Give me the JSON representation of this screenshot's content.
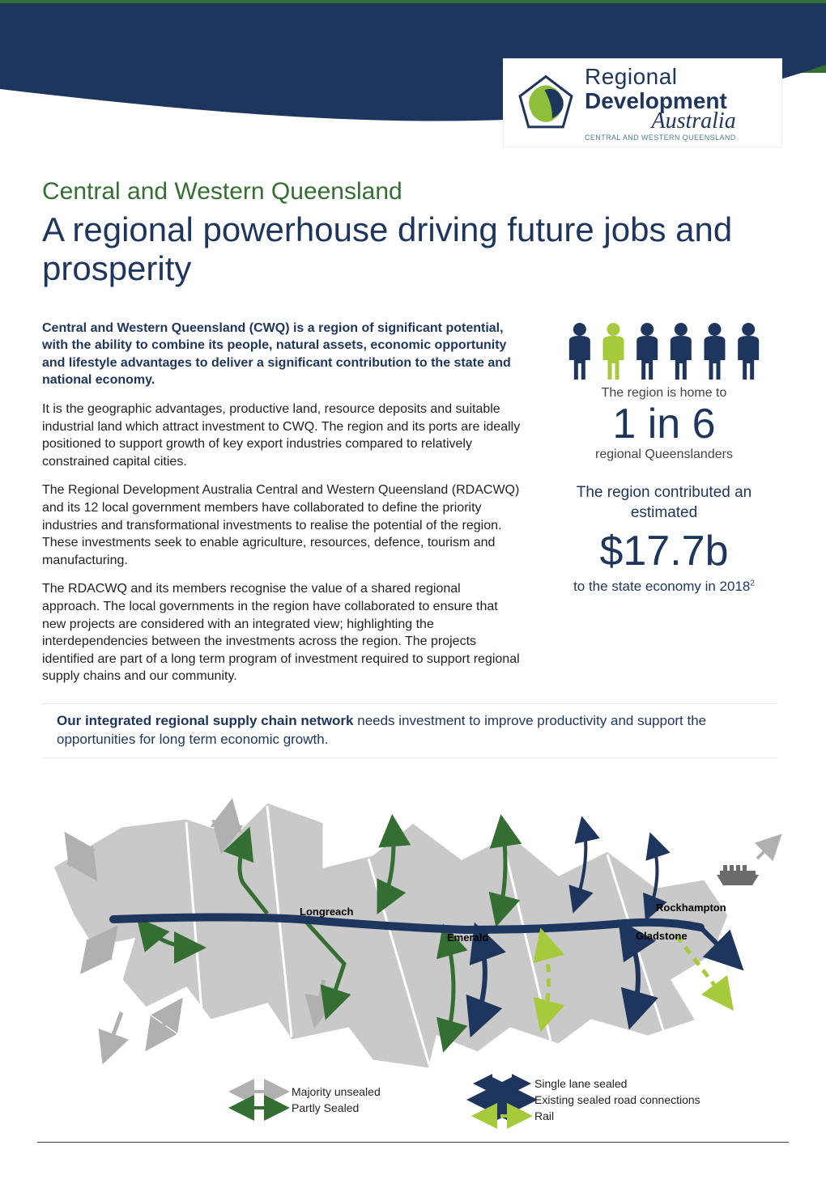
{
  "logo": {
    "line1": "Regional",
    "line2": "Development",
    "line3": "Australia",
    "subtext": "CENTRAL AND WESTERN QUEENSLAND",
    "mark_colors": [
      "#8fbf3a",
      "#1e355d",
      "#356e32"
    ]
  },
  "header": {
    "subtitle": "Central and Western Queensland",
    "title": "A regional powerhouse driving future jobs and prosperity",
    "subtitle_color": "#356e32",
    "title_color": "#1e355d"
  },
  "intro": {
    "bold": "Central and Western Queensland (CWQ) is a region of significant potential, with the ability to combine its people, natural assets, economic opportunity and lifestyle advantages to deliver a significant contribution to the state and national economy.",
    "p1": "It is the geographic advantages, productive land, resource deposits and suitable industrial land which attract investment to CWQ. The region and its ports are ideally positioned to support growth of key export industries compared to relatively constrained capital cities.",
    "p2": "The Regional Development Australia Central and Western Queensland (RDACWQ) and its 12 local government members have collaborated to define the priority industries and transformational investments to realise the potential of the region. These investments seek to enable agriculture, resources, defence, tourism and manufacturing.",
    "p3": "The RDACWQ and its members recognise the value of a shared regional approach. The local governments in the region have collaborated to ensure that new projects are considered with an integrated view; highlighting the interdependencies between the investments across the region. The projects identified are part of a long term program of investment required to support regional supply chains and our community."
  },
  "stats": {
    "people_total": 6,
    "people_highlight_index": 1,
    "people_color": "#1e355d",
    "people_highlight_color": "#a7c93c",
    "home_to_label": "The region is home to",
    "ratio": "1 in 6",
    "ratio_sub": "regional Queenslanders",
    "contrib_label_a": "The region contributed an",
    "contrib_label_b": "estimated",
    "money": "$17.7b",
    "money_foot": "to the state economy in 2018",
    "money_foot_sup": "2"
  },
  "callout": {
    "bold": "Our integrated regional supply chain network",
    "rest": " needs investment to improve productivity and support the opportunities for long term economic growth."
  },
  "map": {
    "background": "#ffffff",
    "region_fill": "#c9c9c9",
    "region_border": "#ffffff",
    "arrow_unsealed": "#b0b0b0",
    "arrow_partly": "#356e32",
    "arrow_single": "#1e355d",
    "arrow_sealed": "#1e355d",
    "arrow_rail": "#a7c93c",
    "cities": {
      "longreach": "Longreach",
      "emerald": "Emerald",
      "rockhampton": "Rockhampton",
      "gladstone": "Gladstone"
    },
    "legend": {
      "unsealed": "Majority unsealed",
      "partly": "Partly Sealed",
      "single": "Single lane sealed",
      "sealed": "Existing sealed road connections",
      "rail": "Rail"
    },
    "ship_icon_color": "#6b6b6b"
  },
  "palette": {
    "green": "#356e32",
    "lime": "#a7c93c",
    "navy": "#1e355d",
    "grey": "#c9c9c9",
    "midgrey": "#8a8a8a"
  }
}
